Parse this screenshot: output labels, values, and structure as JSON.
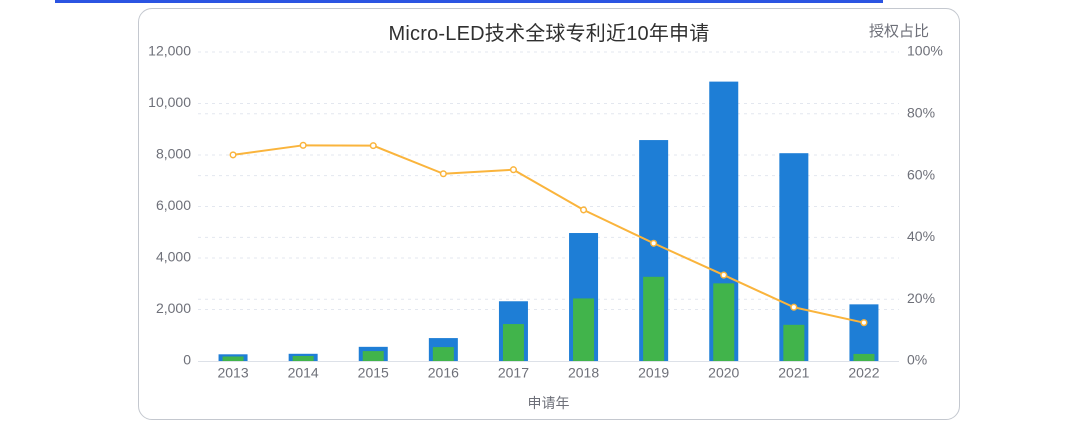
{
  "page": {
    "top_divider_color": "#2B54E2",
    "background": "#FFFFFF"
  },
  "card": {
    "background": "#FFFFFF",
    "border_color": "#C4C8CF"
  },
  "chart_data": {
    "type": "bar+line",
    "title": "Micro-LED技术全球专利近10年申请",
    "xlabel": "申请年",
    "right_axis_title": "授权占比",
    "categories": [
      "2013",
      "2014",
      "2015",
      "2016",
      "2017",
      "2018",
      "2019",
      "2020",
      "2021",
      "2022"
    ],
    "series": [
      {
        "name": "applications-bar",
        "type": "bar",
        "axis": "left",
        "color": "#1E7ED6",
        "values": [
          260,
          280,
          550,
          890,
          2320,
          4970,
          8580,
          10850,
          8070,
          2200
        ]
      },
      {
        "name": "grants-bar",
        "type": "bar",
        "axis": "left",
        "color": "#41B44B",
        "values": [
          175,
          195,
          385,
          540,
          1435,
          2430,
          3270,
          3015,
          1405,
          275
        ]
      },
      {
        "name": "grant-ratio-line",
        "type": "line",
        "axis": "right",
        "color": "#FAB43C",
        "values": [
          66.7,
          69.8,
          69.7,
          60.6,
          61.9,
          48.9,
          38.1,
          27.8,
          17.4,
          12.4
        ]
      }
    ],
    "left_axis": {
      "min": 0,
      "max": 12000,
      "tick_step": 2000,
      "tick_labels": [
        "0",
        "2,000",
        "4,000",
        "6,000",
        "8,000",
        "10,000",
        "12,000"
      ]
    },
    "right_axis": {
      "min": 0,
      "max": 100,
      "tick_step": 20,
      "unit": "%",
      "tick_labels": [
        "0%",
        "20%",
        "40%",
        "60%",
        "80%",
        "100%"
      ]
    },
    "grid": {
      "horizontal_dashed": true,
      "color": "#E3E7EF",
      "axis_line_color": "#DDE1E8"
    },
    "text_color": "#6E7079",
    "title_color": "#303030",
    "legend": "none"
  }
}
